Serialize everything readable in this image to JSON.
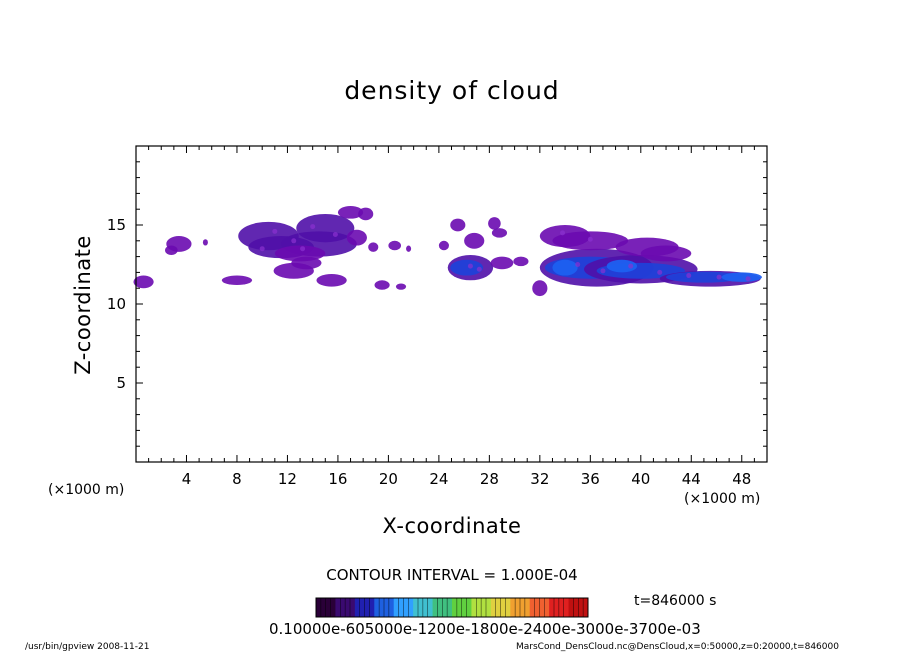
{
  "chart_data": {
    "type": "heatmap",
    "title": "density of cloud",
    "xlabel": "X-coordinate",
    "ylabel": "Z-coordinate",
    "x_unit_left": "(×1000 m)",
    "x_unit_right": "(×1000 m)",
    "xlim": [
      0,
      50
    ],
    "ylim": [
      0,
      20
    ],
    "xticks": [
      "4",
      "8",
      "12",
      "16",
      "20",
      "24",
      "28",
      "32",
      "36",
      "40",
      "44",
      "48"
    ],
    "yticks": [
      "5",
      "10",
      "15"
    ],
    "contour_interval": "CONTOUR INTERVAL = 1.000E-04",
    "time": "t=846000 s",
    "colorbar_ticks": "0.10000e-605000e-1200e-1800e-2400e-3000e-3700e-03",
    "colorbar_colors": [
      "#2a0038",
      "#3a0a70",
      "#2020b0",
      "#1e60e0",
      "#30a0ff",
      "#40c0d0",
      "#40c080",
      "#60d040",
      "#b0e040",
      "#e0d040",
      "#f0a030",
      "#f06030",
      "#e02020",
      "#c01010"
    ],
    "cloud_regions": [
      {
        "x": 0.6,
        "z": 11.4,
        "level": 1
      },
      {
        "x": 3.4,
        "z": 13.8,
        "level": 1
      },
      {
        "x": 10.5,
        "z": 14.3,
        "level": 2
      },
      {
        "x": 15.0,
        "z": 14.8,
        "level": 2
      },
      {
        "x": 13.0,
        "z": 13.3,
        "level": 2
      },
      {
        "x": 12.5,
        "z": 12.1,
        "level": 1
      },
      {
        "x": 8.0,
        "z": 11.5,
        "level": 1
      },
      {
        "x": 19.5,
        "z": 11.2,
        "level": 1
      },
      {
        "x": 26.5,
        "z": 12.3,
        "level": 4
      },
      {
        "x": 25.5,
        "z": 15.0,
        "level": 1
      },
      {
        "x": 29.0,
        "z": 12.6,
        "level": 1
      },
      {
        "x": 36.5,
        "z": 12.3,
        "level": 4
      },
      {
        "x": 40.0,
        "z": 12.2,
        "level": 4
      },
      {
        "x": 45.5,
        "z": 11.6,
        "level": 4
      },
      {
        "x": 36.0,
        "z": 14.0,
        "level": 2
      },
      {
        "x": 42.0,
        "z": 13.2,
        "level": 1
      }
    ]
  },
  "footer": {
    "left": "/usr/bin/gpview   2008-11-21",
    "right": "MarsCond_DensCloud.nc@DensCloud,x=0:50000,z=0:20000,t=846000"
  }
}
